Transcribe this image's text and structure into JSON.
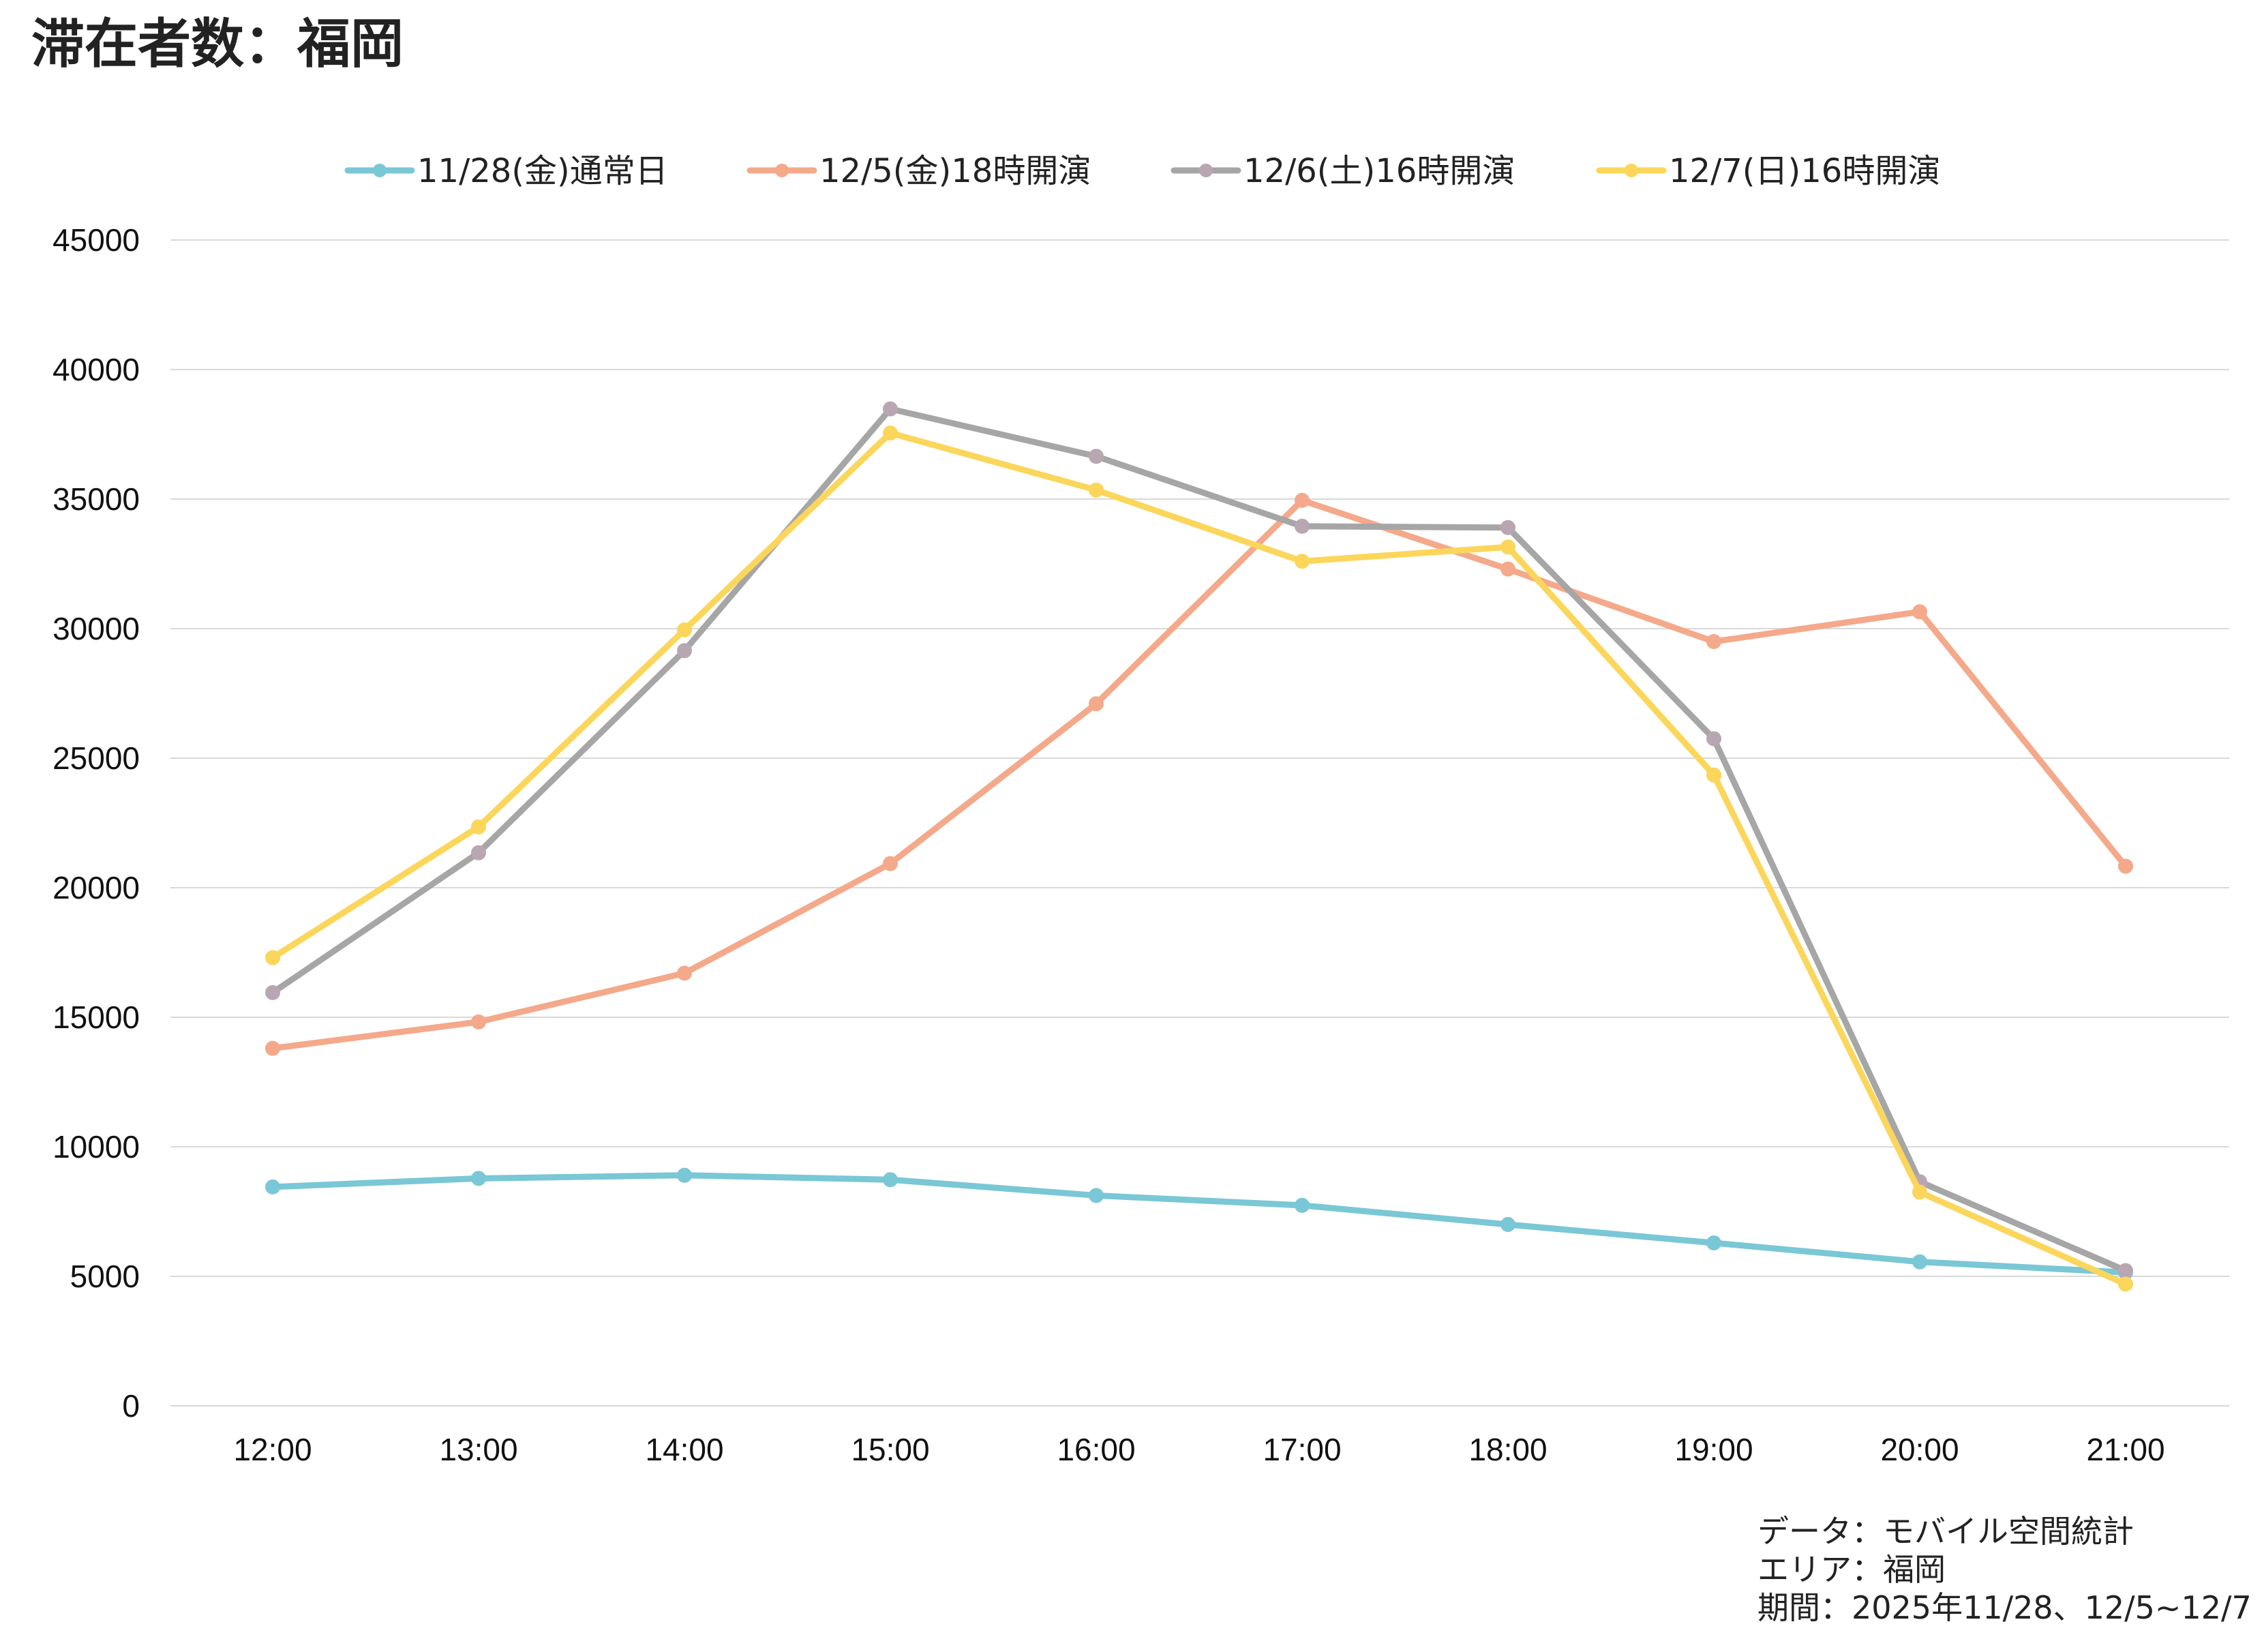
{
  "chart_data": {
    "type": "line",
    "title": "滞在者数：福岡",
    "categories": [
      "12:00",
      "13:00",
      "14:00",
      "15:00",
      "16:00",
      "17:00",
      "18:00",
      "19:00",
      "20:00",
      "21:00"
    ],
    "ylim": [
      0,
      45000
    ],
    "yticks": [
      0,
      5000,
      10000,
      15000,
      20000,
      25000,
      30000,
      35000,
      40000,
      45000
    ],
    "grid": true,
    "legend_position": "top",
    "xlabel": "",
    "ylabel": "",
    "series": [
      {
        "name": "11/28(金)通常日",
        "color": "#7ac7d6",
        "marker_color": "#7ac7d6",
        "values": [
          8450,
          8780,
          8900,
          8730,
          8120,
          7740,
          7000,
          6290,
          5560,
          5150
        ]
      },
      {
        "name": "12/5(金)18時開演",
        "color": "#f4a98a",
        "marker_color": "#f4a98a",
        "values": [
          13800,
          14820,
          16700,
          20930,
          27100,
          34950,
          32300,
          29500,
          30650,
          20830
        ]
      },
      {
        "name": "12/6(土)16時開演",
        "color": "#a6a6a6",
        "marker_color": "#b9a6b3",
        "values": [
          15950,
          21350,
          29150,
          38480,
          36650,
          33950,
          33900,
          25750,
          8650,
          5220
        ]
      },
      {
        "name": "12/7(日)16時開演",
        "color": "#fbd65a",
        "marker_color": "#fbd65a",
        "values": [
          17300,
          22350,
          29950,
          37550,
          35350,
          32600,
          33150,
          24350,
          8250,
          4700
        ]
      }
    ]
  },
  "source": {
    "data_line": "データ：モバイル空間統計",
    "area_line": "エリア：福岡",
    "period_line": "期間：2025年11/28、12/5~12/7"
  }
}
